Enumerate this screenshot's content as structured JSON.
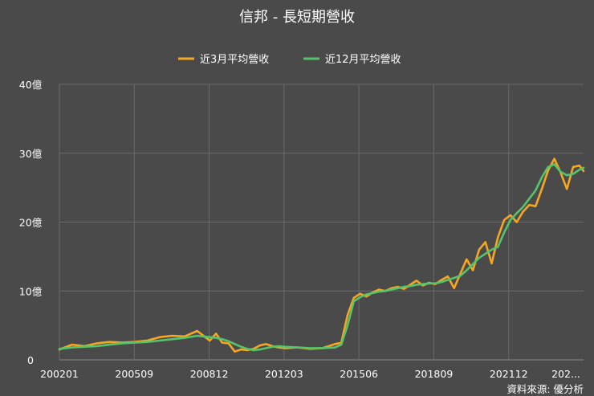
{
  "chart_data": {
    "type": "line",
    "title": "信邦 - 長短期營收",
    "ylim": [
      0,
      40
    ],
    "y_ticks": [
      0,
      10,
      20,
      30,
      40
    ],
    "y_tick_labels": [
      "0",
      "10億",
      "20億",
      "30億",
      "40億"
    ],
    "x_tick_labels": [
      "200201",
      "200509",
      "200812",
      "201203",
      "201506",
      "201809",
      "202112",
      "202..."
    ],
    "x_start": "2002-01",
    "x_end": "2022-12",
    "legend_position": "top",
    "grid": true,
    "source": "資料來源: 優分析",
    "series": [
      {
        "name": "近3月平均營收",
        "color": "#f5a623",
        "x": [
          "2002-01",
          "2002-07",
          "2003-01",
          "2003-07",
          "2004-01",
          "2004-07",
          "2005-01",
          "2005-07",
          "2006-01",
          "2006-07",
          "2007-01",
          "2007-07",
          "2008-01",
          "2008-04",
          "2008-07",
          "2008-10",
          "2009-01",
          "2009-04",
          "2009-07",
          "2009-10",
          "2010-01",
          "2010-04",
          "2010-07",
          "2010-10",
          "2011-01",
          "2011-07",
          "2012-01",
          "2012-07",
          "2013-01",
          "2013-04",
          "2013-07",
          "2013-10",
          "2014-01",
          "2014-04",
          "2014-07",
          "2014-10",
          "2015-01",
          "2015-04",
          "2015-07",
          "2015-10",
          "2016-01",
          "2016-04",
          "2016-07",
          "2016-10",
          "2017-01",
          "2017-04",
          "2017-07",
          "2017-10",
          "2018-01",
          "2018-04",
          "2018-07",
          "2018-10",
          "2019-01",
          "2019-04",
          "2019-07",
          "2019-10",
          "2020-01",
          "2020-04",
          "2020-07",
          "2020-10",
          "2021-01",
          "2021-04",
          "2021-07",
          "2021-10",
          "2022-01",
          "2022-04",
          "2022-07",
          "2022-10",
          "2022-12"
        ],
        "values": [
          1.5,
          2.2,
          2.0,
          2.4,
          2.6,
          2.5,
          2.6,
          2.8,
          3.3,
          3.5,
          3.4,
          4.2,
          2.8,
          3.8,
          2.5,
          2.4,
          1.2,
          1.5,
          1.4,
          1.6,
          2.1,
          2.3,
          2.0,
          1.8,
          1.7,
          1.8,
          1.6,
          1.7,
          2.3,
          2.5,
          6.5,
          9.0,
          9.6,
          9.2,
          9.8,
          10.2,
          10.0,
          10.4,
          10.6,
          10.3,
          10.9,
          11.5,
          10.8,
          11.2,
          11.0,
          11.6,
          12.1,
          10.4,
          12.5,
          14.6,
          13.0,
          16.0,
          17.1,
          14.0,
          17.8,
          20.3,
          21.0,
          20.0,
          21.5,
          22.5,
          22.3,
          24.8,
          27.5,
          29.2,
          27.2,
          24.8,
          28.0,
          28.2,
          27.4
        ]
      },
      {
        "name": "近12月平均營收",
        "color": "#55c46a",
        "x": [
          "2002-01",
          "2002-07",
          "2003-01",
          "2003-07",
          "2004-01",
          "2004-07",
          "2005-01",
          "2005-07",
          "2006-01",
          "2006-07",
          "2007-01",
          "2007-07",
          "2008-01",
          "2008-04",
          "2008-07",
          "2008-10",
          "2009-01",
          "2009-04",
          "2009-07",
          "2009-10",
          "2010-01",
          "2010-04",
          "2010-07",
          "2010-10",
          "2011-01",
          "2011-07",
          "2012-01",
          "2012-07",
          "2013-01",
          "2013-04",
          "2013-07",
          "2013-10",
          "2014-01",
          "2014-04",
          "2014-07",
          "2014-10",
          "2015-01",
          "2015-04",
          "2015-07",
          "2015-10",
          "2016-01",
          "2016-04",
          "2016-07",
          "2016-10",
          "2017-01",
          "2017-04",
          "2017-07",
          "2017-10",
          "2018-01",
          "2018-04",
          "2018-07",
          "2018-10",
          "2019-01",
          "2019-04",
          "2019-07",
          "2019-10",
          "2020-01",
          "2020-04",
          "2020-07",
          "2020-10",
          "2021-01",
          "2021-04",
          "2021-07",
          "2021-10",
          "2022-01",
          "2022-04",
          "2022-07",
          "2022-10",
          "2022-12"
        ],
        "values": [
          1.6,
          1.8,
          1.9,
          2.0,
          2.2,
          2.4,
          2.5,
          2.6,
          2.8,
          3.0,
          3.2,
          3.5,
          3.3,
          3.2,
          3.0,
          2.7,
          2.3,
          1.9,
          1.6,
          1.4,
          1.5,
          1.7,
          1.9,
          2.0,
          1.9,
          1.8,
          1.7,
          1.7,
          1.8,
          2.2,
          5.0,
          8.5,
          9.1,
          9.5,
          9.7,
          9.9,
          10.0,
          10.2,
          10.4,
          10.6,
          10.7,
          10.9,
          11.0,
          11.1,
          11.1,
          11.3,
          11.6,
          11.9,
          12.2,
          13.0,
          13.9,
          14.8,
          15.4,
          16.0,
          16.4,
          18.5,
          20.3,
          21.3,
          22.2,
          23.4,
          24.6,
          26.5,
          28.0,
          28.4,
          27.3,
          26.8,
          27.0,
          27.6,
          27.9
        ]
      }
    ]
  }
}
